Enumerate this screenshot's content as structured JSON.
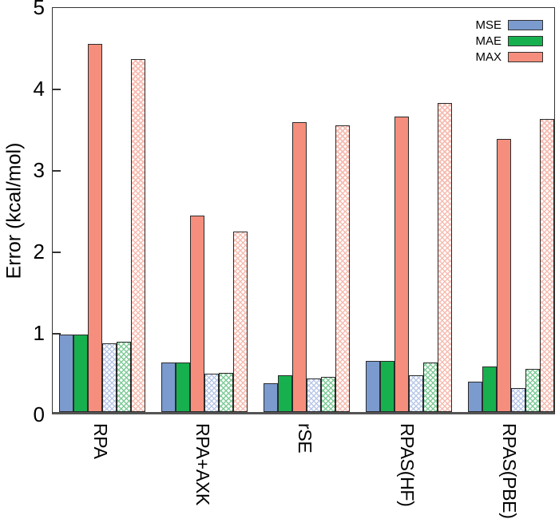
{
  "figure": {
    "background": "#ffffff"
  },
  "y_axis": {
    "label": "Error (kcal/mol)",
    "ticks": [
      "0",
      "1",
      "2",
      "3",
      "4",
      "5"
    ],
    "min": 0,
    "max": 5
  },
  "legend": {
    "items": [
      {
        "label": "MSE",
        "color": "#7b9ace"
      },
      {
        "label": "MAE",
        "color": "#17b04e"
      },
      {
        "label": "MAX",
        "color": "#f58e7c"
      }
    ]
  },
  "colors": {
    "mse_solid": "#7b9ace",
    "mae_solid": "#17b04e",
    "max_solid": "#f58e7c",
    "mse_hatch": "#b9c8e8",
    "mae_hatch": "#7fcb98",
    "max_hatch": "#f6bcb1",
    "bar_border": "#2b2b2b",
    "axis": "#333333"
  },
  "chart_data": {
    "type": "bar",
    "title": "",
    "xlabel": "",
    "ylabel": "Error (kcal/mol)",
    "ylim": [
      0,
      5
    ],
    "grid": false,
    "legend_position": "top-right",
    "categories": [
      "RPA",
      "RPA+AXK",
      "rSE",
      "RPAS(HF)",
      "RPAS(PBE)"
    ],
    "series": [
      {
        "name": "MSE",
        "pattern": "solid",
        "color": "#7b9ace",
        "values": [
          0.95,
          0.61,
          0.35,
          0.63,
          0.37
        ]
      },
      {
        "name": "MAE",
        "pattern": "solid",
        "color": "#17b04e",
        "values": [
          0.95,
          0.61,
          0.45,
          0.63,
          0.56
        ]
      },
      {
        "name": "MAX",
        "pattern": "solid",
        "color": "#f58e7c",
        "values": [
          4.52,
          2.41,
          3.56,
          3.63,
          3.35
        ]
      },
      {
        "name": "MSE (crosshatched)",
        "pattern": "crosshatch",
        "color": "#b9c8e8",
        "values": [
          0.84,
          0.47,
          0.41,
          0.45,
          0.29
        ]
      },
      {
        "name": "MAE (crosshatched)",
        "pattern": "crosshatch",
        "color": "#7fcb98",
        "values": [
          0.86,
          0.48,
          0.43,
          0.61,
          0.53
        ]
      },
      {
        "name": "MAX (crosshatched)",
        "pattern": "crosshatch",
        "color": "#f6bcb1",
        "values": [
          4.33,
          2.22,
          3.52,
          3.79,
          3.6
        ]
      }
    ]
  }
}
